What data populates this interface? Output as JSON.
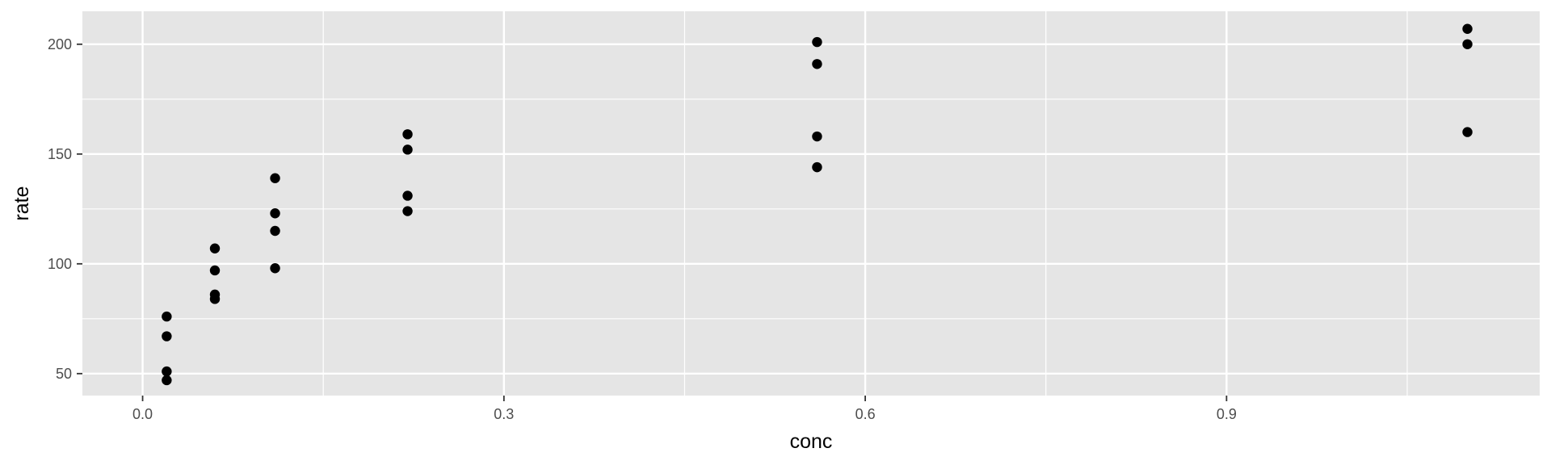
{
  "chart_data": {
    "type": "scatter",
    "title": "",
    "xlabel": "conc",
    "ylabel": "rate",
    "xlim": [
      -0.05,
      1.16
    ],
    "ylim": [
      40,
      215
    ],
    "x_ticks": [
      0.0,
      0.3,
      0.6,
      0.9
    ],
    "x_tick_labels": [
      "0.0",
      "0.3",
      "0.6",
      "0.9"
    ],
    "y_ticks": [
      50,
      100,
      150,
      200
    ],
    "y_tick_labels": [
      "50",
      "100",
      "150",
      "200"
    ],
    "x_minor_ticks": [
      0.15,
      0.45,
      0.75,
      1.05
    ],
    "y_minor_ticks": [
      75,
      125,
      175
    ],
    "grid": true,
    "legend": "none",
    "colors": {
      "panel": "#e5e5e5",
      "grid": "#ffffff",
      "point": "#000000"
    },
    "points": [
      {
        "x": 0.02,
        "y": 76
      },
      {
        "x": 0.02,
        "y": 67
      },
      {
        "x": 0.02,
        "y": 51
      },
      {
        "x": 0.02,
        "y": 47
      },
      {
        "x": 0.06,
        "y": 107
      },
      {
        "x": 0.06,
        "y": 97
      },
      {
        "x": 0.06,
        "y": 86
      },
      {
        "x": 0.06,
        "y": 84
      },
      {
        "x": 0.11,
        "y": 139
      },
      {
        "x": 0.11,
        "y": 123
      },
      {
        "x": 0.11,
        "y": 115
      },
      {
        "x": 0.11,
        "y": 98
      },
      {
        "x": 0.22,
        "y": 159
      },
      {
        "x": 0.22,
        "y": 152
      },
      {
        "x": 0.22,
        "y": 131
      },
      {
        "x": 0.22,
        "y": 124
      },
      {
        "x": 0.56,
        "y": 201
      },
      {
        "x": 0.56,
        "y": 191
      },
      {
        "x": 0.56,
        "y": 158
      },
      {
        "x": 0.56,
        "y": 144
      },
      {
        "x": 1.1,
        "y": 207
      },
      {
        "x": 1.1,
        "y": 200
      },
      {
        "x": 1.1,
        "y": 160
      }
    ]
  }
}
